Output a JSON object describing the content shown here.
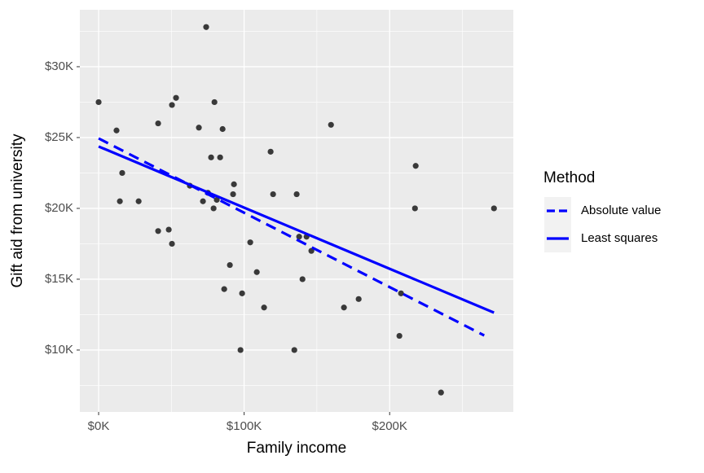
{
  "chart_data": {
    "type": "scatter",
    "x_label": "Family income",
    "y_label": "Gift aid from university",
    "x": [
      0,
      12300,
      16200,
      14600,
      27500,
      40900,
      40900,
      48200,
      50400,
      53200,
      50400,
      62700,
      68900,
      71700,
      73900,
      75100,
      77300,
      79600,
      79000,
      81200,
      83500,
      85200,
      86300,
      90200,
      93000,
      92400,
      98600,
      97500,
      104200,
      108700,
      113700,
      118200,
      119900,
      134500,
      136100,
      137800,
      140100,
      142900,
      146200,
      159700,
      168600,
      178700,
      206700,
      207800,
      217400,
      217900,
      235300,
      271700
    ],
    "values": [
      27500,
      25500,
      22500,
      20500,
      20500,
      26000,
      18400,
      18500,
      27300,
      27800,
      17500,
      21600,
      25700,
      20500,
      32800,
      21100,
      23600,
      27500,
      20000,
      20600,
      23600,
      25600,
      14300,
      16000,
      21700,
      21000,
      14000,
      10000,
      17600,
      15500,
      13000,
      24000,
      21000,
      10000,
      21000,
      18000,
      15000,
      18000,
      17000,
      25900,
      13000,
      13600,
      11000,
      14000,
      20000,
      23000,
      7000,
      20000
    ],
    "color": "#1a1a1a",
    "legend_title": "Method",
    "series": [
      {
        "name": "Absolute value",
        "color": "#0000ff",
        "dashed": true,
        "x": [
          0,
          265000
        ],
        "values": [
          24940,
          11030
        ]
      },
      {
        "name": "Least squares",
        "color": "#0000ff",
        "dashed": false,
        "x": [
          0,
          271700
        ],
        "values": [
          24370,
          12640
        ]
      }
    ],
    "xlim": [
      -12900,
      285000
    ],
    "xticks": [
      {
        "value": 0,
        "label": "$0K"
      },
      {
        "value": 100000,
        "label": "$100K"
      },
      {
        "value": 200000,
        "label": "$200K"
      }
    ],
    "ylim": [
      5630,
      34020
    ],
    "yticks": [
      {
        "value": 10000,
        "label": "$10K"
      },
      {
        "value": 15000,
        "label": "$15K"
      },
      {
        "value": 20000,
        "label": "$20K"
      },
      {
        "value": 25000,
        "label": "$25K"
      },
      {
        "value": 30000,
        "label": "$30K"
      }
    ],
    "grid": true
  }
}
